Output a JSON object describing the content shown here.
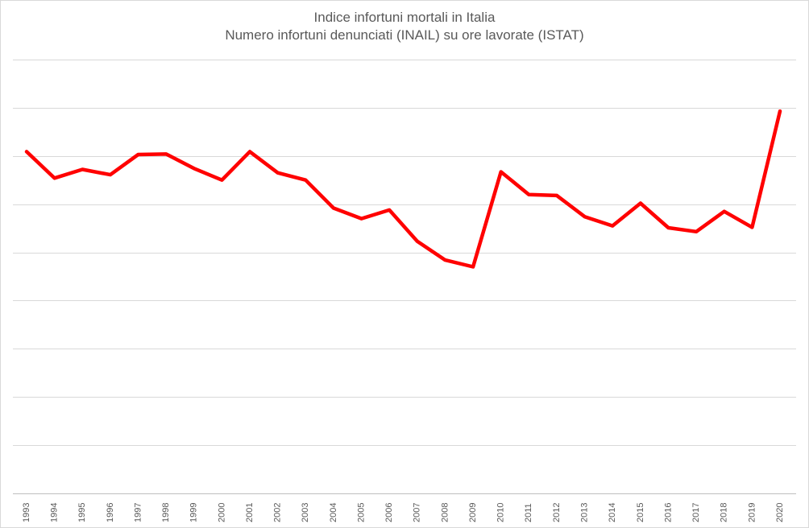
{
  "chart_data": {
    "type": "line",
    "title": "Indice infortuni mortali in Italia",
    "subtitle": "Numero infortuni denunciati (INAIL) su ore lavorate (ISTAT)",
    "xlabel": "",
    "ylabel": "",
    "ylim": [
      0,
      9
    ],
    "y_gridlines": [
      0,
      1,
      2,
      3,
      4,
      5,
      6,
      7,
      8,
      9
    ],
    "grid": true,
    "legend": "none",
    "categories": [
      "1993",
      "1994",
      "1995",
      "1996",
      "1997",
      "1998",
      "1999",
      "2000",
      "2001",
      "2002",
      "2003",
      "2004",
      "2005",
      "2006",
      "2007",
      "2008",
      "2009",
      "2010",
      "2011",
      "2012",
      "2013",
      "2014",
      "2015",
      "2016",
      "2017",
      "2018",
      "2019",
      "2020"
    ],
    "series": [
      {
        "color": "#ff0000",
        "values": [
          7.09,
          6.54,
          6.72,
          6.61,
          7.03,
          7.04,
          6.74,
          6.5,
          7.09,
          6.65,
          6.5,
          5.92,
          5.7,
          5.88,
          5.23,
          4.84,
          4.7,
          6.67,
          6.2,
          6.18,
          5.74,
          5.55,
          6.02,
          5.51,
          5.43,
          5.85,
          5.52,
          7.93
        ]
      }
    ]
  }
}
